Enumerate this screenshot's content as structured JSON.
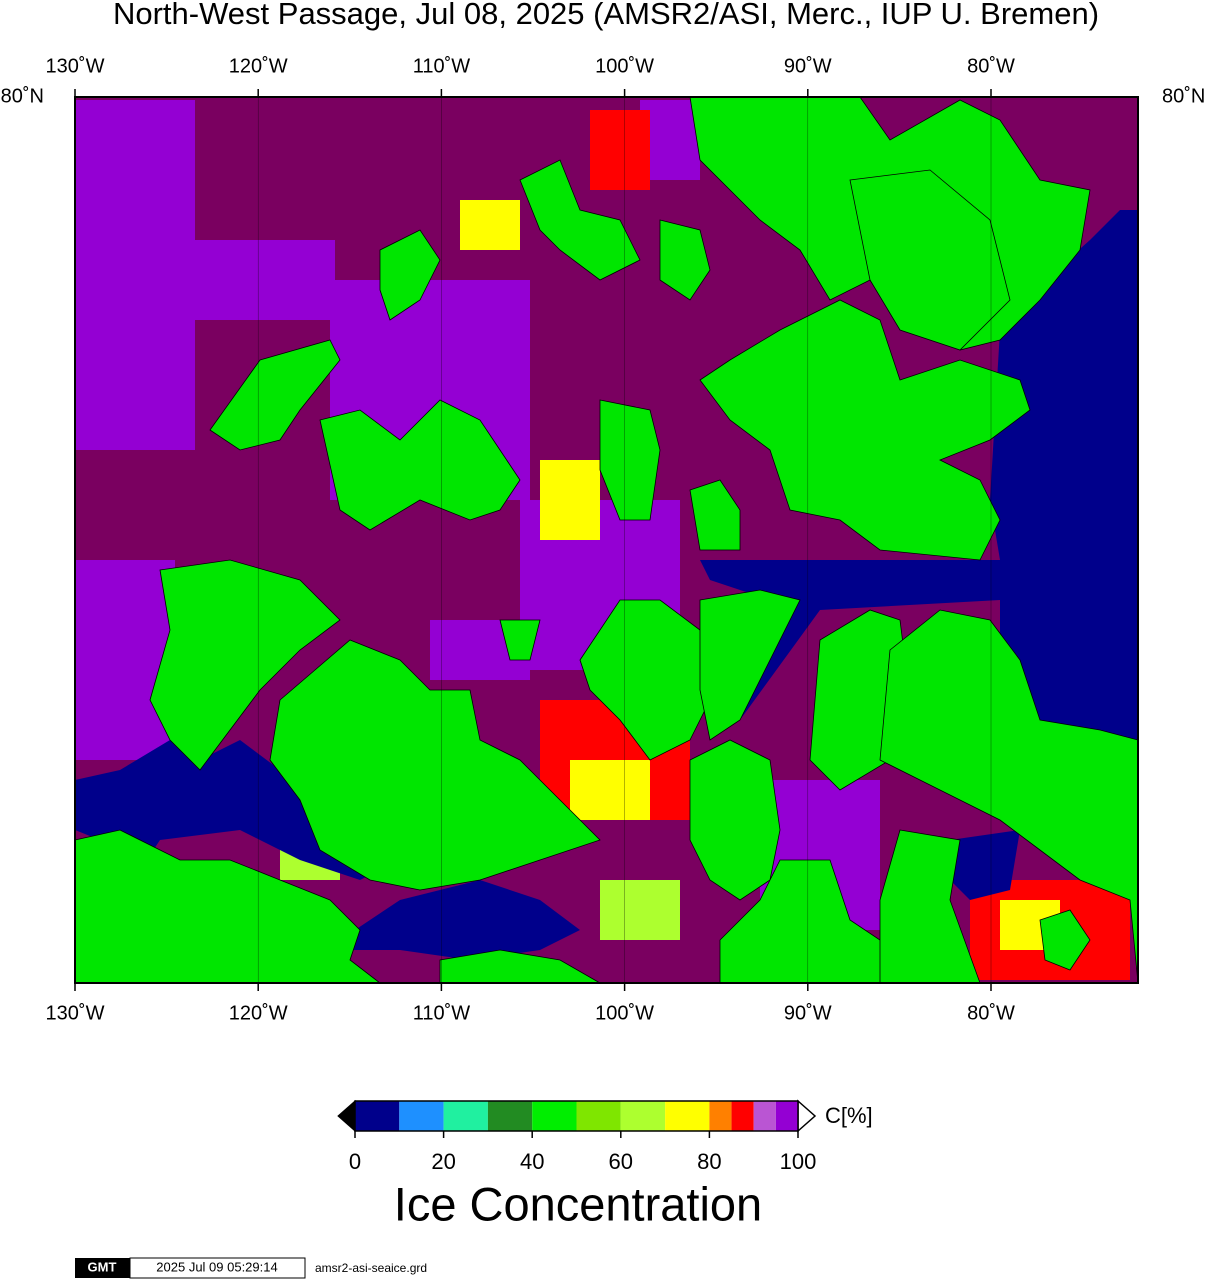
{
  "title": "North-West Passage, Jul 08, 2025 (AMSR2/ASI, Merc., IUP U. Bremen)",
  "map": {
    "lon_labels_top": [
      "130˚W",
      "120˚W",
      "110˚W",
      "100˚W",
      "90˚W",
      "80˚W"
    ],
    "lon_labels_bottom": [
      "130˚W",
      "120˚W",
      "110˚W",
      "100˚W",
      "90˚W",
      "80˚W"
    ],
    "lat_label_left": "80˚N",
    "lat_label_right": "80˚N"
  },
  "colorbar": {
    "unit": "C[%]",
    "title": "Ice Concentration",
    "range": [
      0,
      100
    ],
    "ticks": [
      0,
      20,
      40,
      60,
      80,
      100
    ],
    "levels": [
      0,
      10,
      20,
      30,
      40,
      50,
      60,
      70,
      80,
      85,
      90,
      95,
      100
    ],
    "colors": [
      "#00008b",
      "#1e90ff",
      "#20f0a0",
      "#228b22",
      "#00ee00",
      "#7fe600",
      "#adff2f",
      "#ffff00",
      "#ff8000",
      "#ff0000",
      "#ba55d3",
      "#9400d3"
    ]
  },
  "footer": {
    "logo": "GMT",
    "timestamp": "2025 Jul 09 05:29:14",
    "file": "amsr2-asi-seaice.grd"
  }
}
